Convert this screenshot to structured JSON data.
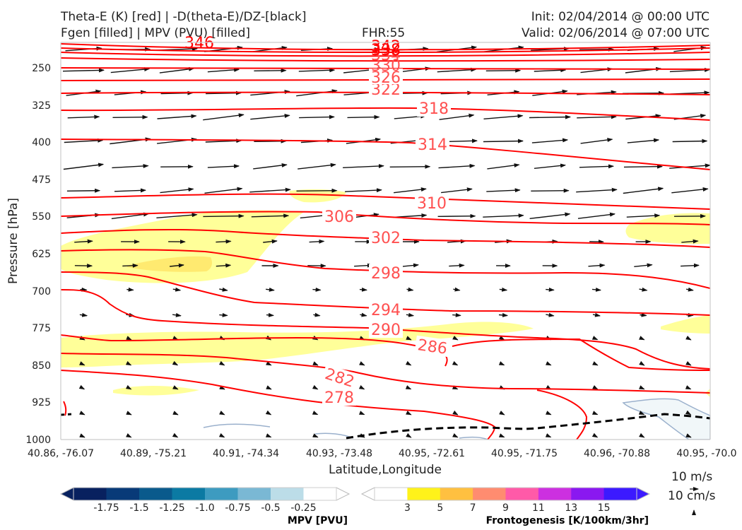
{
  "header": {
    "title_line1": "Theta-E (K) [red] | -D(theta-E)/DZ-[black]",
    "title_line2": "Fgen [filled] | MPV (PVU) [filled]",
    "fhr": "FHR:55",
    "init": "Init: 02/04/2014 @ 00:00 UTC",
    "valid": "Valid: 02/06/2014 @ 07:00 UTC"
  },
  "chart_data": {
    "type": "cross-section",
    "ylabel": "Pressure [hPa]",
    "xlabel": "Latitude,Longitude",
    "y_axis_inverted": true,
    "ylim": [
      200,
      1000
    ],
    "y_ticks": [
      250,
      325,
      400,
      475,
      550,
      625,
      700,
      775,
      850,
      925,
      1000
    ],
    "x_ticks": [
      "40.86, -76.07",
      "40.89, -75.21",
      "40.91, -74.34",
      "40.93, -73.48",
      "40.95, -72.61",
      "40.95, -71.75",
      "40.96, -70.88",
      "40.95, -70.0"
    ],
    "theta_e_contours": {
      "color": "#ff0000",
      "levels": [
        278,
        282,
        286,
        290,
        294,
        298,
        302,
        306,
        310,
        314,
        318,
        322,
        326,
        330,
        334,
        338,
        342,
        346
      ],
      "labels": [
        "278",
        "282",
        "286",
        "290",
        "294",
        "298",
        "302",
        "306",
        "310",
        "314",
        "318",
        "322",
        "326",
        "330",
        "334",
        "338",
        "342",
        "346"
      ]
    },
    "wind_reference": {
      "label_1": "10 m/s",
      "label_2": "10 cm/s"
    },
    "mpv_colorbar": {
      "title": "MPV [PVU]",
      "ticks": [
        "-1.75",
        "-1.5",
        "-1.25",
        "-1.0",
        "-0.75",
        "-0.5",
        "-0.25"
      ],
      "colors": [
        "#08215f",
        "#083a78",
        "#0a5a8c",
        "#0b7aa3",
        "#3d9bc0",
        "#7ab8d4",
        "#bcdde8",
        "#ffffff"
      ]
    },
    "fgen_colorbar": {
      "title": "Frontogenesis [K/100km/3hr]",
      "ticks": [
        "3",
        "5",
        "7",
        "9",
        "11",
        "13",
        "15"
      ],
      "colors": [
        "#ffffff",
        "#fff21a",
        "#ffc040",
        "#ff8c70",
        "#ff5aa8",
        "#cc30e0",
        "#8a18f0",
        "#3c1aff"
      ]
    }
  }
}
